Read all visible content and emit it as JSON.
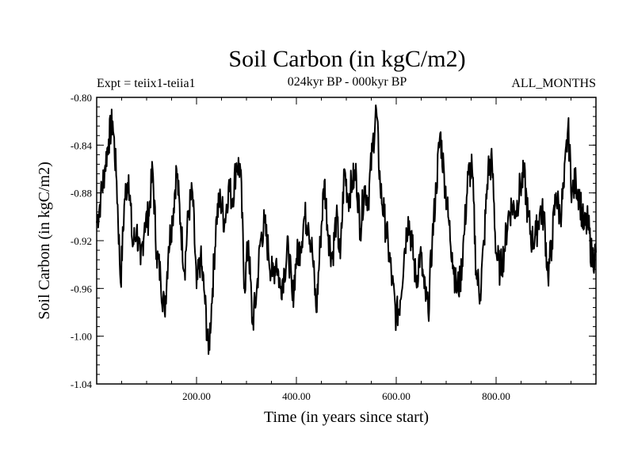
{
  "chart_data": {
    "type": "line",
    "title": "Soil Carbon (in kgC/m2)",
    "subtitle_left": "Expt = teiix1-teiia1",
    "subtitle_center": "024kyr BP - 000kyr BP",
    "subtitle_right": "ALL_MONTHS",
    "xlabel": "Time (in years since start)",
    "ylabel": "Soil Carbon (in kgC/m2)",
    "xlim": [
      0,
      1000
    ],
    "ylim": [
      -1.04,
      -0.8
    ],
    "xticks": [
      200,
      400,
      600,
      800
    ],
    "xtick_labels": [
      "200.00",
      "400.00",
      "600.00",
      "800.00"
    ],
    "yticks": [
      -0.8,
      -0.84,
      -0.88,
      -0.92,
      -0.96,
      -1.0,
      -1.04
    ],
    "ytick_labels": [
      "-0.80",
      "-0.84",
      "-0.88",
      "-0.92",
      "-0.96",
      "-1.00",
      "-1.04"
    ],
    "grid": false,
    "line_color": "#000000",
    "series": [
      {
        "x": [
          0,
          8,
          16,
          24,
          32,
          40,
          48,
          56,
          64,
          72,
          80,
          88,
          96,
          104,
          112,
          120,
          128,
          136,
          144,
          152,
          160,
          168,
          176,
          184,
          192,
          200,
          208,
          216,
          224,
          232,
          240,
          248,
          256,
          264,
          272,
          280,
          288,
          296,
          304,
          312,
          320,
          328,
          336,
          344,
          352,
          360,
          368,
          376,
          384,
          392,
          400,
          408,
          416,
          424,
          432,
          440,
          448,
          456,
          464,
          472,
          480,
          488,
          496,
          504,
          512,
          520,
          528,
          536,
          544,
          552,
          560,
          568,
          576,
          584,
          592,
          600,
          608,
          616,
          624,
          632,
          640,
          648,
          656,
          664,
          672,
          680,
          688,
          696,
          704,
          712,
          720,
          728,
          736,
          744,
          752,
          760,
          768,
          776,
          784,
          792,
          800,
          808,
          816,
          824,
          832,
          840,
          848,
          856,
          864,
          872,
          880,
          888,
          896,
          904,
          912,
          920,
          928,
          936,
          944,
          952,
          960,
          968,
          976,
          984,
          992,
          1000
        ],
        "values": [
          -0.905,
          -0.885,
          -0.86,
          -0.835,
          -0.82,
          -0.87,
          -0.955,
          -0.885,
          -0.865,
          -0.925,
          -0.91,
          -0.94,
          -0.905,
          -0.9,
          -0.86,
          -0.93,
          -0.95,
          -0.98,
          -0.925,
          -0.9,
          -0.86,
          -0.905,
          -0.945,
          -0.895,
          -0.88,
          -0.96,
          -0.935,
          -0.965,
          -1.015,
          -0.96,
          -0.9,
          -0.885,
          -0.905,
          -0.875,
          -0.885,
          -0.855,
          -0.86,
          -0.96,
          -0.92,
          -0.99,
          -0.965,
          -0.92,
          -0.905,
          -0.93,
          -0.95,
          -0.935,
          -0.96,
          -0.945,
          -0.925,
          -0.97,
          -0.935,
          -0.925,
          -0.9,
          -0.905,
          -0.93,
          -0.98,
          -0.92,
          -0.87,
          -0.915,
          -0.935,
          -0.9,
          -0.935,
          -0.86,
          -0.885,
          -0.87,
          -0.865,
          -0.91,
          -0.875,
          -0.885,
          -0.845,
          -0.81,
          -0.875,
          -0.9,
          -0.925,
          -0.955,
          -0.985,
          -0.97,
          -0.93,
          -0.9,
          -0.925,
          -0.955,
          -0.93,
          -0.96,
          -0.98,
          -0.92,
          -0.875,
          -0.83,
          -0.865,
          -0.9,
          -0.93,
          -0.96,
          -0.955,
          -0.915,
          -0.865,
          -0.86,
          -0.945,
          -0.965,
          -0.92,
          -0.86,
          -0.855,
          -0.93,
          -0.945,
          -0.93,
          -0.9,
          -0.89,
          -0.895,
          -0.875,
          -0.865,
          -0.9,
          -0.92,
          -0.915,
          -0.895,
          -0.9,
          -0.95,
          -0.92,
          -0.88,
          -0.9,
          -0.875,
          -0.825,
          -0.88,
          -0.87,
          -0.885,
          -0.91,
          -0.905,
          -0.935,
          -0.93
        ]
      }
    ]
  }
}
